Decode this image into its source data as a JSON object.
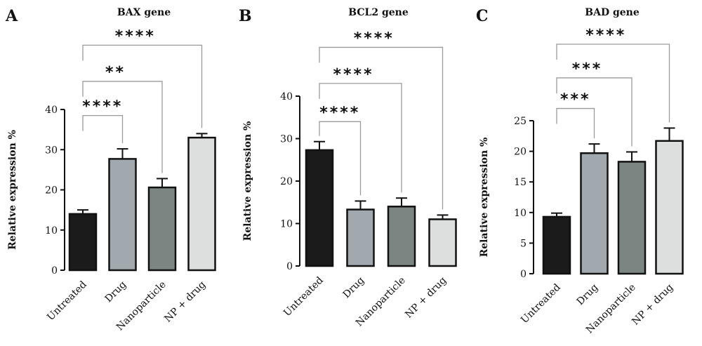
{
  "figure": {
    "panel_letters": [
      "A",
      "B",
      "C"
    ]
  },
  "chart_data": [
    {
      "type": "bar",
      "panel": "A",
      "title": "BAX gene",
      "ylabel": "Relative expression %",
      "xlabel": "",
      "categories": [
        "Untreated",
        "Drug",
        "Nanoparticle",
        "NP + drug"
      ],
      "values": [
        14.0,
        27.7,
        20.6,
        33.0
      ],
      "errors": [
        1.0,
        2.5,
        2.2,
        1.0
      ],
      "bar_colors": [
        "#1b1b1b",
        "#a2a9ae",
        "#7b8682",
        "#dcdfdd"
      ],
      "ylim": [
        0,
        40
      ],
      "yticks": [
        0,
        10,
        20,
        30,
        40
      ],
      "significance": [
        {
          "from": 0,
          "to": 1,
          "label": "****",
          "y": 38.5
        },
        {
          "from": 0,
          "to": 2,
          "label": "**",
          "y": 47.0
        },
        {
          "from": 0,
          "to": 3,
          "label": "****",
          "y": 56.0
        }
      ]
    },
    {
      "type": "bar",
      "panel": "B",
      "title": "BCL2 gene",
      "ylabel": "Relative expression %",
      "xlabel": "",
      "categories": [
        "Untreated",
        "Drug",
        "Nanoparticle",
        "NP + drug"
      ],
      "values": [
        27.3,
        13.3,
        14.0,
        11.0
      ],
      "errors": [
        2.0,
        2.0,
        2.0,
        1.0
      ],
      "bar_colors": [
        "#1b1b1b",
        "#a2a9ae",
        "#7b8682",
        "#dcdfdd"
      ],
      "ylim": [
        0,
        40
      ],
      "yticks": [
        0,
        10,
        20,
        30,
        40
      ],
      "significance": [
        {
          "from": 0,
          "to": 1,
          "label": "****",
          "y": 34.0
        },
        {
          "from": 0,
          "to": 2,
          "label": "****",
          "y": 43.0
        },
        {
          "from": 0,
          "to": 3,
          "label": "****",
          "y": 51.5
        }
      ]
    },
    {
      "type": "bar",
      "panel": "C",
      "title": "BAD gene",
      "ylabel": "Relative expression %",
      "xlabel": "",
      "categories": [
        "Untreated",
        "Drug",
        "Nanoparticle",
        "NP + drug"
      ],
      "values": [
        9.3,
        19.7,
        18.3,
        21.7
      ],
      "errors": [
        0.6,
        1.5,
        1.6,
        2.1
      ],
      "bar_colors": [
        "#1b1b1b",
        "#a2a9ae",
        "#7b8682",
        "#dcdfdd"
      ],
      "ylim": [
        0,
        25
      ],
      "yticks": [
        0,
        5,
        10,
        15,
        20,
        25
      ],
      "significance": [
        {
          "from": 0,
          "to": 1,
          "label": "***",
          "y": 27.0
        },
        {
          "from": 0,
          "to": 2,
          "label": "***",
          "y": 32.0
        },
        {
          "from": 0,
          "to": 3,
          "label": "****",
          "y": 37.5
        }
      ]
    }
  ]
}
